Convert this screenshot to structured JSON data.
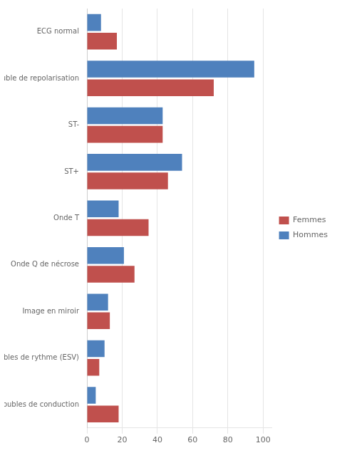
{
  "chart_data": {
    "type": "bar",
    "orientation": "horizontal",
    "categories": [
      "Troubles de conduction",
      "Troubles de rythme (ESV)",
      "Image en miroir",
      "Onde Q de nécrose",
      "Onde T",
      "ST+",
      "ST-",
      "Trouble de repolarisation",
      "ECG normal"
    ],
    "series": [
      {
        "name": "Femmes",
        "color": "#C0504D",
        "values": [
          18,
          7,
          13,
          27,
          35,
          46,
          43,
          72,
          17
        ]
      },
      {
        "name": "Hommes",
        "color": "#4F81BD",
        "values": [
          5,
          10,
          12,
          21,
          18,
          54,
          43,
          95,
          8
        ]
      }
    ],
    "xlim": [
      0,
      105
    ],
    "xticks": [
      0,
      20,
      40,
      60,
      80,
      100
    ],
    "grid": true,
    "legend": "right"
  }
}
